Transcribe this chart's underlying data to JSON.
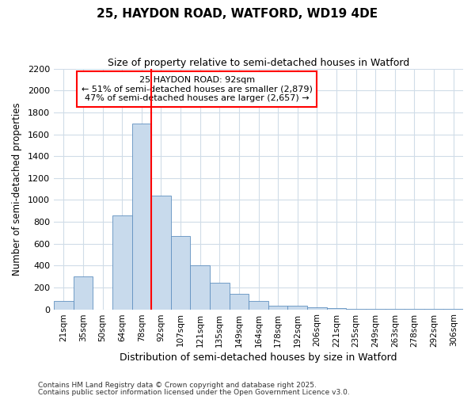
{
  "title1": "25, HAYDON ROAD, WATFORD, WD19 4DE",
  "title2": "Size of property relative to semi-detached houses in Watford",
  "xlabel": "Distribution of semi-detached houses by size in Watford",
  "ylabel": "Number of semi-detached properties",
  "bin_labels": [
    "21sqm",
    "35sqm",
    "50sqm",
    "64sqm",
    "78sqm",
    "92sqm",
    "107sqm",
    "121sqm",
    "135sqm",
    "149sqm",
    "164sqm",
    "178sqm",
    "192sqm",
    "206sqm",
    "221sqm",
    "235sqm",
    "249sqm",
    "263sqm",
    "278sqm",
    "292sqm",
    "306sqm"
  ],
  "bar_heights": [
    75,
    300,
    0,
    860,
    1700,
    1040,
    670,
    400,
    245,
    145,
    80,
    35,
    30,
    15,
    10,
    5,
    5,
    3,
    2,
    2,
    1
  ],
  "bar_color": "#c8daec",
  "bar_edge_color": "#6090c0",
  "vline_color": "red",
  "vline_index": 5,
  "annotation_title": "25 HAYDON ROAD: 92sqm",
  "annotation_line1": "← 51% of semi-detached houses are smaller (2,879)",
  "annotation_line2": "47% of semi-detached houses are larger (2,657) →",
  "ylim": [
    0,
    2200
  ],
  "yticks": [
    0,
    200,
    400,
    600,
    800,
    1000,
    1200,
    1400,
    1600,
    1800,
    2000,
    2200
  ],
  "footnote1": "Contains HM Land Registry data © Crown copyright and database right 2025.",
  "footnote2": "Contains public sector information licensed under the Open Government Licence v3.0.",
  "bg_color": "#ffffff",
  "plot_bg_color": "#ffffff",
  "grid_color": "#d0dce8"
}
